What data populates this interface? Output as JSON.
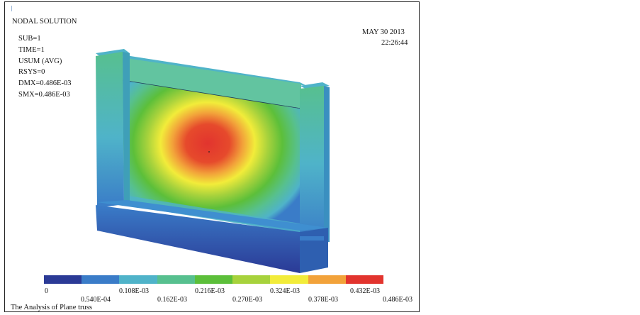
{
  "header": {
    "title": "NODAL  SOLUTION",
    "lines": [
      "SUB=1",
      "TIME=1",
      "USUM    (AVG)",
      "RSYS=0",
      "DMX=0.486E-03",
      "SMX=0.486E-03"
    ],
    "date": "MAY  30  2013",
    "time": "22:26:44"
  },
  "footer": {
    "caption": "The  Analysis of Plane truss"
  },
  "legend": {
    "colors": [
      "#2b3a96",
      "#3a7cc8",
      "#4fb3c9",
      "#57c08f",
      "#5cbf3a",
      "#a7d23c",
      "#f2ec3a",
      "#f2a23a",
      "#e2342e"
    ],
    "labels_top": [
      "0",
      "0.108E-03",
      "0.216E-03",
      "0.324E-03",
      "0.432E-03"
    ],
    "labels_bottom": [
      "0.540E-04",
      "0.162E-03",
      "0.270E-03",
      "0.378E-03",
      "0.486E-03"
    ]
  }
}
